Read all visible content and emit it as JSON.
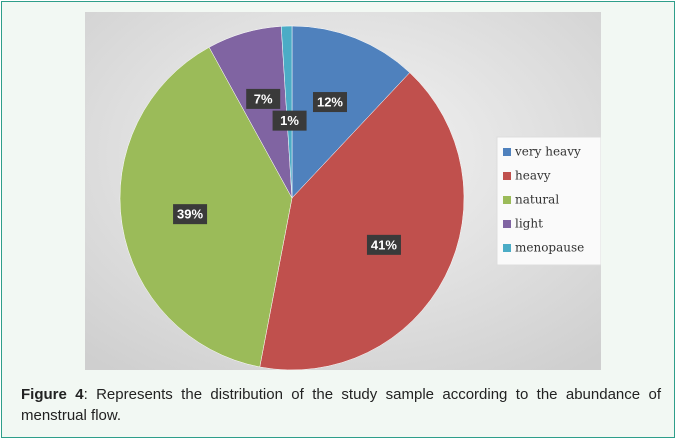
{
  "chart_data": {
    "type": "pie",
    "categories": [
      "very heavy",
      "heavy",
      "natural",
      "light",
      "menopause"
    ],
    "values": [
      12,
      41,
      39,
      7,
      1
    ],
    "value_labels": [
      "12%",
      "41%",
      "39%",
      "7%",
      "1%"
    ],
    "colors": [
      "#4f81bd",
      "#c0504d",
      "#9bbb59",
      "#8064a2",
      "#4bacc6"
    ],
    "legend": "right"
  },
  "caption": {
    "label": "Figure 4",
    "text": ": Represents the distribution of the study sample according to the abundance of menstrual flow."
  }
}
